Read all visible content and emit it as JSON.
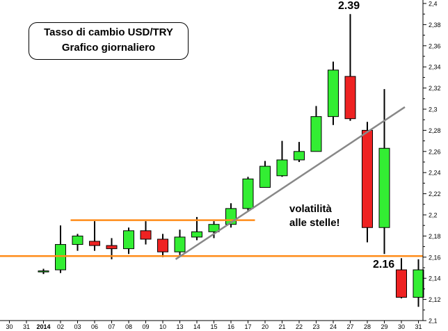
{
  "chart_data": {
    "type": "candlestick",
    "title": "Tasso di cambio USD/TRY",
    "subtitle": "Grafico giornaliero",
    "x_labels": [
      "30",
      "31",
      "2014",
      "02",
      "03",
      "06",
      "07",
      "08",
      "09",
      "10",
      "13",
      "14",
      "15",
      "16",
      "17",
      "20",
      "21",
      "22",
      "23",
      "24",
      "27",
      "28",
      "29",
      "30",
      "31"
    ],
    "y_ticks": [
      "2,1",
      "2,12",
      "2,14",
      "2,16",
      "2,18",
      "2,2",
      "2,22",
      "2,24",
      "2,26",
      "2,28",
      "2,3",
      "2,32",
      "2,34",
      "2,36",
      "2,38",
      "2,4"
    ],
    "ylim": [
      2.1,
      2.4
    ],
    "candles": [
      {
        "x": "30",
        "open": 2.148,
        "high": 2.159,
        "low": 2.121,
        "close": 2.122
      },
      {
        "x": "31",
        "open": 2.122,
        "high": 2.158,
        "low": 2.113,
        "close": 2.148
      },
      {
        "x": "2014",
        "open": 2.146,
        "high": 2.149,
        "low": 2.144,
        "close": 2.147
      },
      {
        "x": "02",
        "open": 2.148,
        "high": 2.19,
        "low": 2.145,
        "close": 2.172
      },
      {
        "x": "03",
        "open": 2.172,
        "high": 2.182,
        "low": 2.166,
        "close": 2.18
      },
      {
        "x": "06",
        "open": 2.175,
        "high": 2.194,
        "low": 2.166,
        "close": 2.171
      },
      {
        "x": "07",
        "open": 2.171,
        "high": 2.178,
        "low": 2.158,
        "close": 2.168
      },
      {
        "x": "08",
        "open": 2.168,
        "high": 2.188,
        "low": 2.163,
        "close": 2.185
      },
      {
        "x": "09",
        "open": 2.185,
        "high": 2.194,
        "low": 2.172,
        "close": 2.177
      },
      {
        "x": "10",
        "open": 2.177,
        "high": 2.182,
        "low": 2.16,
        "close": 2.165
      },
      {
        "x": "13",
        "open": 2.165,
        "high": 2.186,
        "low": 2.162,
        "close": 2.179
      },
      {
        "x": "14",
        "open": 2.179,
        "high": 2.198,
        "low": 2.176,
        "close": 2.184
      },
      {
        "x": "15",
        "open": 2.184,
        "high": 2.194,
        "low": 2.178,
        "close": 2.191
      },
      {
        "x": "16",
        "open": 2.191,
        "high": 2.211,
        "low": 2.188,
        "close": 2.206
      },
      {
        "x": "17",
        "open": 2.206,
        "high": 2.236,
        "low": 2.204,
        "close": 2.234
      },
      {
        "x": "20",
        "open": 2.226,
        "high": 2.251,
        "low": 2.226,
        "close": 2.246
      },
      {
        "x": "21",
        "open": 2.237,
        "high": 2.27,
        "low": 2.236,
        "close": 2.252
      },
      {
        "x": "22",
        "open": 2.252,
        "high": 2.269,
        "low": 2.25,
        "close": 2.26
      },
      {
        "x": "23",
        "open": 2.26,
        "high": 2.303,
        "low": 2.26,
        "close": 2.293
      },
      {
        "x": "24",
        "open": 2.293,
        "high": 2.345,
        "low": 2.285,
        "close": 2.337
      },
      {
        "x": "27",
        "open": 2.331,
        "high": 2.39,
        "low": 2.289,
        "close": 2.291
      },
      {
        "x": "28",
        "open": 2.28,
        "high": 2.288,
        "low": 2.174,
        "close": 2.188
      },
      {
        "x": "29",
        "open": 2.188,
        "high": 2.319,
        "low": 2.163,
        "close": 2.263
      }
    ],
    "horizontal_lines": [
      {
        "y": 2.161,
        "x_from": "30",
        "x_to": "31"
      },
      {
        "y": 2.195,
        "x_from": "03",
        "x_to": "17"
      }
    ],
    "trendline": {
      "from": {
        "x": "13",
        "y": 2.158
      },
      "to": {
        "x": "30",
        "y": 2.302
      }
    },
    "annotations": {
      "high_label": "2.39",
      "low_label": "2.16",
      "note_line1": "volatilità",
      "note_line2": "alle stelle!"
    },
    "colors": {
      "up": "#33ee33",
      "down": "#ee2222",
      "support": "#ff8c1a",
      "trendline": "#888888",
      "grid": "#cccccc"
    },
    "grid": false
  }
}
